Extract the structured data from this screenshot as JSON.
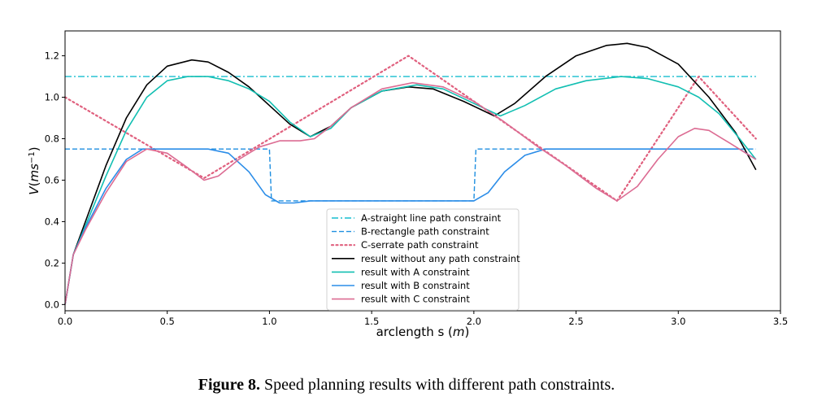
{
  "chart_data": {
    "type": "line",
    "xlabel": "arclength s (m)",
    "ylabel": "V(ms−1)",
    "xlim": [
      0,
      3.5
    ],
    "ylim": [
      -0.03,
      1.32
    ],
    "xticks": [
      "0.0",
      "0.5",
      "1.0",
      "1.5",
      "2.0",
      "2.5",
      "3.0",
      "3.5"
    ],
    "yticks": [
      "0.0",
      "0.2",
      "0.4",
      "0.6",
      "0.8",
      "1.0",
      "1.2"
    ],
    "legend_position": "lower-center",
    "series": [
      {
        "name": "A-straight line path constraint",
        "color": "#17becf",
        "dash": "dashdot",
        "width": 1.4,
        "points": [
          [
            0,
            1.1
          ],
          [
            3.38,
            1.1
          ]
        ]
      },
      {
        "name": "B-rectangle path constraint",
        "color": "#1f8fe0",
        "dash": "dashed",
        "width": 1.4,
        "points": [
          [
            0,
            0.75
          ],
          [
            1.0,
            0.75
          ],
          [
            1.01,
            0.5
          ],
          [
            2.0,
            0.5
          ],
          [
            2.01,
            0.75
          ],
          [
            3.38,
            0.75
          ]
        ]
      },
      {
        "name": "C-serrate path constraint",
        "color": "#e0607e",
        "dash": "dotted",
        "width": 2.2,
        "points": [
          [
            0,
            1.0
          ],
          [
            0.68,
            0.61
          ],
          [
            1.68,
            1.2
          ],
          [
            2.7,
            0.5
          ],
          [
            3.1,
            1.1
          ],
          [
            3.38,
            0.8
          ]
        ]
      },
      {
        "name": "result without any path constraint",
        "color": "#000000",
        "dash": "solid",
        "width": 1.6,
        "points": [
          [
            0,
            0
          ],
          [
            0.04,
            0.24
          ],
          [
            0.1,
            0.4
          ],
          [
            0.2,
            0.67
          ],
          [
            0.3,
            0.9
          ],
          [
            0.4,
            1.06
          ],
          [
            0.5,
            1.15
          ],
          [
            0.62,
            1.18
          ],
          [
            0.7,
            1.17
          ],
          [
            0.8,
            1.12
          ],
          [
            0.9,
            1.05
          ],
          [
            1.0,
            0.96
          ],
          [
            1.1,
            0.87
          ],
          [
            1.2,
            0.81
          ],
          [
            1.3,
            0.86
          ],
          [
            1.4,
            0.95
          ],
          [
            1.55,
            1.03
          ],
          [
            1.68,
            1.05
          ],
          [
            1.8,
            1.04
          ],
          [
            1.95,
            0.98
          ],
          [
            2.1,
            0.91
          ],
          [
            2.2,
            0.97
          ],
          [
            2.35,
            1.1
          ],
          [
            2.5,
            1.2
          ],
          [
            2.65,
            1.25
          ],
          [
            2.75,
            1.26
          ],
          [
            2.85,
            1.24
          ],
          [
            3.0,
            1.16
          ],
          [
            3.15,
            1.0
          ],
          [
            3.28,
            0.83
          ],
          [
            3.38,
            0.65
          ]
        ]
      },
      {
        "name": "result with A constraint",
        "color": "#12bfb2",
        "dash": "solid",
        "width": 1.6,
        "points": [
          [
            0,
            0
          ],
          [
            0.04,
            0.24
          ],
          [
            0.1,
            0.38
          ],
          [
            0.2,
            0.62
          ],
          [
            0.3,
            0.84
          ],
          [
            0.4,
            1.0
          ],
          [
            0.5,
            1.08
          ],
          [
            0.6,
            1.1
          ],
          [
            0.7,
            1.1
          ],
          [
            0.8,
            1.08
          ],
          [
            0.9,
            1.04
          ],
          [
            1.0,
            0.98
          ],
          [
            1.1,
            0.88
          ],
          [
            1.2,
            0.81
          ],
          [
            1.3,
            0.85
          ],
          [
            1.4,
            0.95
          ],
          [
            1.55,
            1.03
          ],
          [
            1.72,
            1.06
          ],
          [
            1.85,
            1.04
          ],
          [
            2.0,
            0.97
          ],
          [
            2.13,
            0.91
          ],
          [
            2.25,
            0.96
          ],
          [
            2.4,
            1.04
          ],
          [
            2.55,
            1.08
          ],
          [
            2.72,
            1.1
          ],
          [
            2.85,
            1.09
          ],
          [
            3.0,
            1.05
          ],
          [
            3.1,
            1.0
          ],
          [
            3.2,
            0.92
          ],
          [
            3.3,
            0.8
          ],
          [
            3.38,
            0.7
          ]
        ]
      },
      {
        "name": "result with B constraint",
        "color": "#2b8de8",
        "dash": "solid",
        "width": 1.6,
        "points": [
          [
            0,
            0
          ],
          [
            0.04,
            0.24
          ],
          [
            0.1,
            0.37
          ],
          [
            0.2,
            0.56
          ],
          [
            0.3,
            0.7
          ],
          [
            0.38,
            0.75
          ],
          [
            0.7,
            0.75
          ],
          [
            0.8,
            0.73
          ],
          [
            0.9,
            0.64
          ],
          [
            0.98,
            0.53
          ],
          [
            1.05,
            0.49
          ],
          [
            1.12,
            0.49
          ],
          [
            1.2,
            0.5
          ],
          [
            1.95,
            0.5
          ],
          [
            2.0,
            0.5
          ],
          [
            2.07,
            0.54
          ],
          [
            2.15,
            0.64
          ],
          [
            2.25,
            0.72
          ],
          [
            2.35,
            0.75
          ],
          [
            3.3,
            0.75
          ],
          [
            3.38,
            0.7
          ]
        ]
      },
      {
        "name": "result with C constraint",
        "color": "#dc6c93",
        "dash": "solid",
        "width": 1.6,
        "points": [
          [
            0,
            0
          ],
          [
            0.04,
            0.24
          ],
          [
            0.1,
            0.36
          ],
          [
            0.2,
            0.54
          ],
          [
            0.3,
            0.69
          ],
          [
            0.4,
            0.75
          ],
          [
            0.5,
            0.73
          ],
          [
            0.6,
            0.66
          ],
          [
            0.68,
            0.6
          ],
          [
            0.75,
            0.62
          ],
          [
            0.85,
            0.7
          ],
          [
            0.95,
            0.76
          ],
          [
            1.05,
            0.79
          ],
          [
            1.15,
            0.79
          ],
          [
            1.22,
            0.8
          ],
          [
            1.3,
            0.86
          ],
          [
            1.4,
            0.95
          ],
          [
            1.55,
            1.04
          ],
          [
            1.7,
            1.07
          ],
          [
            1.85,
            1.05
          ],
          [
            2.0,
            0.98
          ],
          [
            2.15,
            0.88
          ],
          [
            2.3,
            0.77
          ],
          [
            2.45,
            0.67
          ],
          [
            2.6,
            0.56
          ],
          [
            2.7,
            0.5
          ],
          [
            2.8,
            0.57
          ],
          [
            2.9,
            0.7
          ],
          [
            3.0,
            0.81
          ],
          [
            3.08,
            0.85
          ],
          [
            3.15,
            0.84
          ],
          [
            3.25,
            0.78
          ],
          [
            3.38,
            0.7
          ]
        ]
      }
    ]
  },
  "caption": {
    "label": "Figure 8.",
    "text": " Speed planning results with different path constraints."
  }
}
